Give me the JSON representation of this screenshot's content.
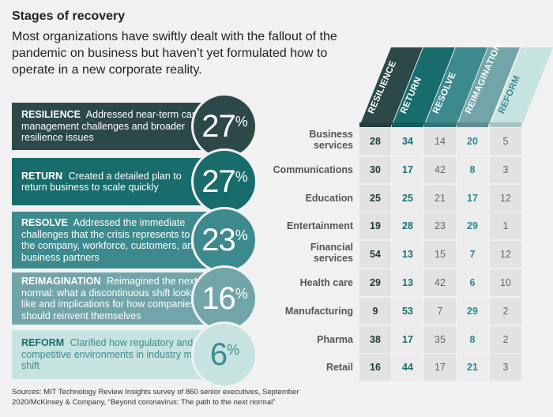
{
  "title": "Stages of recovery",
  "subtitle": "Most organizations have swiftly dealt with the fallout of the pandemic on business but haven’t yet formulated how to operate in a new corporate reality.",
  "stages": [
    {
      "name": "RESILIENCE",
      "desc": "Addressed near-term cash management challenges and broader resilience issues",
      "pct": "27",
      "color": "#2c4848"
    },
    {
      "name": "RETURN",
      "desc": "Created a detailed plan to return business to scale quickly",
      "pct": "27",
      "color": "#186c6b"
    },
    {
      "name": "RESOLVE",
      "desc": "Addressed the immediate challenges that the crisis represents to the company, workforce, customers, and business partners",
      "pct": "23",
      "color": "#3c8a8e"
    },
    {
      "name": "REIMAGINATION",
      "desc": "Reimagined the next normal: what a discontinuous shift looks like and implications for how companies should reinvent themselves",
      "pct": "16",
      "color": "#72a5aa"
    },
    {
      "name": "REFORM",
      "desc": "Clarified how regulatory and competitive environments in industry may shift",
      "pct": "6",
      "color": "#c6e3e0"
    }
  ],
  "pct_symbol": "%",
  "chart_data": {
    "type": "table",
    "columns": [
      "RESILIENCE",
      "RETURN",
      "RESOLVE",
      "REIMAGINATION",
      "REFORM"
    ],
    "rows": [
      "Business services",
      "Communications",
      "Education",
      "Entertainment",
      "Financial services",
      "Health care",
      "Manufacturing",
      "Pharma",
      "Retail"
    ],
    "values": [
      [
        28,
        34,
        14,
        20,
        5
      ],
      [
        30,
        17,
        42,
        8,
        3
      ],
      [
        25,
        25,
        21,
        17,
        12
      ],
      [
        19,
        28,
        23,
        29,
        1
      ],
      [
        54,
        13,
        15,
        7,
        12
      ],
      [
        29,
        13,
        42,
        6,
        10
      ],
      [
        9,
        53,
        7,
        29,
        2
      ],
      [
        38,
        17,
        35,
        8,
        2
      ],
      [
        16,
        44,
        17,
        21,
        3
      ]
    ],
    "text_colors": [
      "#223838",
      "#1b6e6e",
      "#666666",
      "#2a8a8f",
      "#666666"
    ]
  },
  "source": "Sources: MIT Technology Review Insights survey of 860 senior executives, September 2020/McKinsey & Company, “Beyond coronavirus: The path to the next normal”"
}
